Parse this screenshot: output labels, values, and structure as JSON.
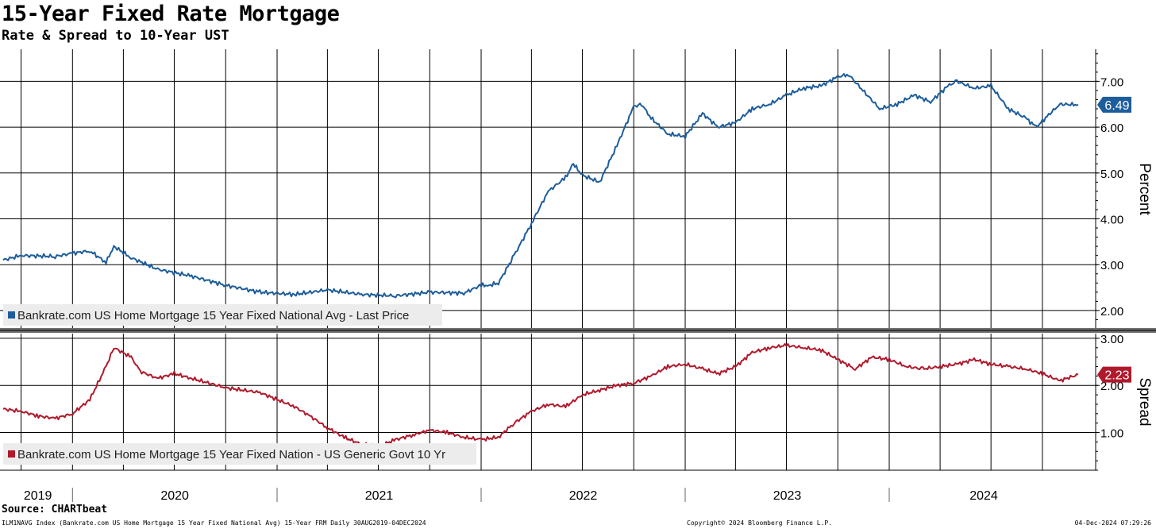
{
  "title": "15-Year Fixed Rate Mortgage",
  "subtitle": "Rate & Spread to 10-Year UST",
  "source": "Source:  CHARTbeat",
  "footer": {
    "left": "ILM1NAVG Index (Bankrate.com US Home Mortgage 15 Year Fixed National Avg) 15-Year FRM  Daily 30AUG2019-04DEC2024",
    "center": "Copyright© 2024 Bloomberg Finance L.P.",
    "right": "04-Dec-2024 07:29:26"
  },
  "chart_data": [
    {
      "type": "line",
      "ylabel": "Percent",
      "ylim": [
        1.6,
        7.7
      ],
      "yticks": [
        "2.00",
        "3.00",
        "4.00",
        "5.00",
        "6.00",
        "7.00"
      ],
      "grid": true,
      "legend_placement": "bottom-left",
      "series": [
        {
          "name": "Bankrate.com US Home Mortgage 15 Year Fixed National Avg - Last Price",
          "color": "#1d5d9b",
          "last_value_label": "6.49",
          "x": [
            "2019-08-30",
            "2019-10-01",
            "2019-12-01",
            "2020-01-01",
            "2020-02-01",
            "2020-03-01",
            "2020-03-15",
            "2020-04-15",
            "2020-06-01",
            "2020-08-01",
            "2020-10-01",
            "2020-12-01",
            "2021-02-01",
            "2021-04-01",
            "2021-06-01",
            "2021-08-01",
            "2021-10-01",
            "2021-12-01",
            "2022-01-01",
            "2022-01-15",
            "2022-02-01",
            "2022-03-01",
            "2022-04-01",
            "2022-05-01",
            "2022-06-01",
            "2022-06-15",
            "2022-07-01",
            "2022-08-01",
            "2022-09-01",
            "2022-10-01",
            "2022-10-15",
            "2022-11-01",
            "2022-12-01",
            "2023-01-01",
            "2023-02-01",
            "2023-03-01",
            "2023-04-01",
            "2023-05-01",
            "2023-06-01",
            "2023-07-01",
            "2023-08-01",
            "2023-09-01",
            "2023-10-01",
            "2023-10-20",
            "2023-11-15",
            "2023-12-15",
            "2024-01-15",
            "2024-02-15",
            "2024-03-15",
            "2024-04-15",
            "2024-05-01",
            "2024-06-01",
            "2024-07-01",
            "2024-08-01",
            "2024-09-01",
            "2024-09-20",
            "2024-10-15",
            "2024-11-01",
            "2024-12-04"
          ],
          "values": [
            3.1,
            3.2,
            3.18,
            3.25,
            3.3,
            3.05,
            3.4,
            3.15,
            2.9,
            2.75,
            2.55,
            2.4,
            2.35,
            2.45,
            2.35,
            2.32,
            2.4,
            2.38,
            2.55,
            2.55,
            2.6,
            3.2,
            3.9,
            4.6,
            4.9,
            5.2,
            4.95,
            4.8,
            5.6,
            6.45,
            6.5,
            6.2,
            5.85,
            5.8,
            6.3,
            6.0,
            6.1,
            6.4,
            6.5,
            6.7,
            6.85,
            6.9,
            7.1,
            7.15,
            6.8,
            6.4,
            6.5,
            6.7,
            6.55,
            6.9,
            7.0,
            6.85,
            6.9,
            6.4,
            6.2,
            6.0,
            6.3,
            6.5,
            6.49
          ]
        }
      ]
    },
    {
      "type": "line",
      "ylabel": "Spread",
      "ylim": [
        0.2,
        3.1
      ],
      "yticks": [
        "1.00",
        "2.00",
        "3.00"
      ],
      "grid": true,
      "legend_placement": "bottom-left",
      "series": [
        {
          "name": "Bankrate.com US Home Mortgage 15 Year Fixed Nation - US Generic Govt 10 Yr",
          "color": "#b0192c",
          "last_value_label": "2.23",
          "x": [
            "2019-08-30",
            "2019-10-01",
            "2019-11-01",
            "2019-12-01",
            "2020-01-01",
            "2020-02-01",
            "2020-03-01",
            "2020-03-15",
            "2020-04-15",
            "2020-05-01",
            "2020-06-01",
            "2020-07-01",
            "2020-08-01",
            "2020-10-01",
            "2020-12-01",
            "2021-02-01",
            "2021-03-01",
            "2021-04-01",
            "2021-05-01",
            "2021-06-01",
            "2021-07-01",
            "2021-08-01",
            "2021-09-01",
            "2021-10-01",
            "2021-11-01",
            "2021-12-01",
            "2022-01-01",
            "2022-02-01",
            "2022-03-01",
            "2022-04-01",
            "2022-05-01",
            "2022-06-01",
            "2022-07-01",
            "2022-08-01",
            "2022-09-01",
            "2022-10-01",
            "2022-11-01",
            "2022-12-01",
            "2023-01-01",
            "2023-02-01",
            "2023-03-01",
            "2023-04-01",
            "2023-05-01",
            "2023-06-01",
            "2023-07-01",
            "2023-08-01",
            "2023-09-01",
            "2023-10-01",
            "2023-11-01",
            "2023-12-01",
            "2024-01-01",
            "2024-02-01",
            "2024-03-01",
            "2024-04-01",
            "2024-05-01",
            "2024-06-01",
            "2024-07-01",
            "2024-08-01",
            "2024-09-01",
            "2024-10-01",
            "2024-11-01",
            "2024-12-04"
          ],
          "values": [
            1.5,
            1.45,
            1.35,
            1.3,
            1.4,
            1.7,
            2.4,
            2.8,
            2.6,
            2.3,
            2.15,
            2.25,
            2.15,
            1.95,
            1.85,
            1.55,
            1.35,
            1.1,
            0.9,
            0.75,
            0.7,
            0.85,
            0.95,
            1.05,
            1.0,
            0.9,
            0.85,
            0.9,
            1.2,
            1.45,
            1.6,
            1.55,
            1.8,
            1.9,
            2.0,
            2.05,
            2.2,
            2.4,
            2.45,
            2.35,
            2.25,
            2.4,
            2.7,
            2.8,
            2.85,
            2.8,
            2.75,
            2.55,
            2.35,
            2.6,
            2.55,
            2.4,
            2.35,
            2.4,
            2.45,
            2.55,
            2.45,
            2.4,
            2.35,
            2.25,
            2.1,
            2.23
          ]
        }
      ]
    }
  ],
  "x_axis": {
    "type": "date",
    "range": [
      "2019-08-30",
      "2024-12-04"
    ],
    "year_labels": [
      "2019",
      "2020",
      "2021",
      "2022",
      "2023",
      "2024"
    ]
  }
}
